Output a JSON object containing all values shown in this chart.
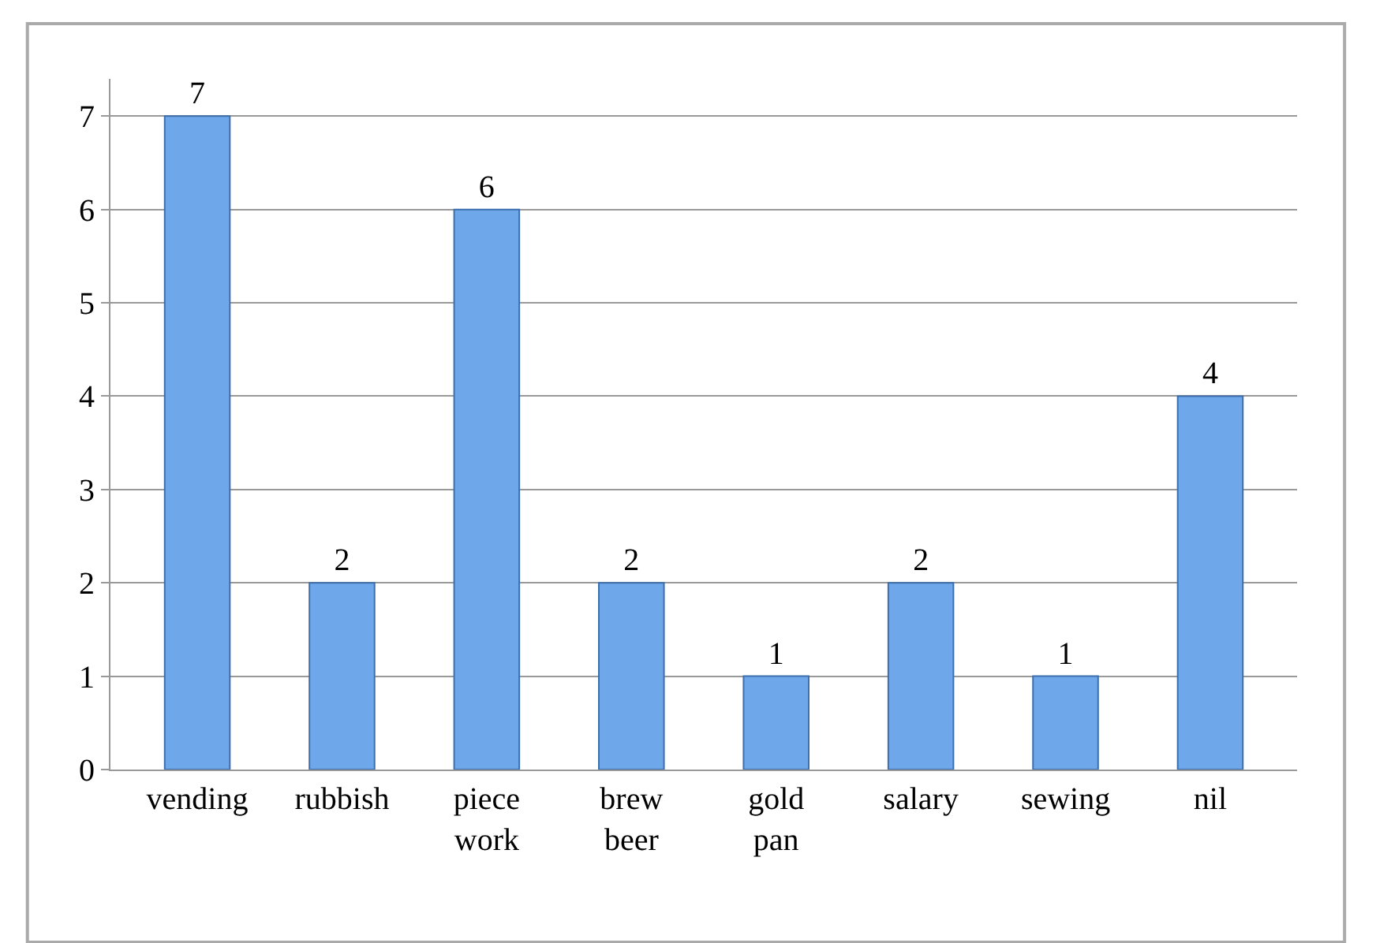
{
  "chart_data": {
    "type": "bar",
    "categories": [
      "vending",
      "rubbish",
      "piece work",
      "brew beer",
      "gold pan",
      "salary",
      "sewing",
      "nil"
    ],
    "values": [
      7,
      2,
      6,
      2,
      1,
      2,
      1,
      4
    ],
    "color": "#6fa8ea",
    "ylim": [
      0,
      7.4
    ],
    "yticks": [
      0,
      1,
      2,
      3,
      4,
      5,
      6,
      7
    ],
    "grid": "y",
    "data_labels": true,
    "legend": false
  }
}
